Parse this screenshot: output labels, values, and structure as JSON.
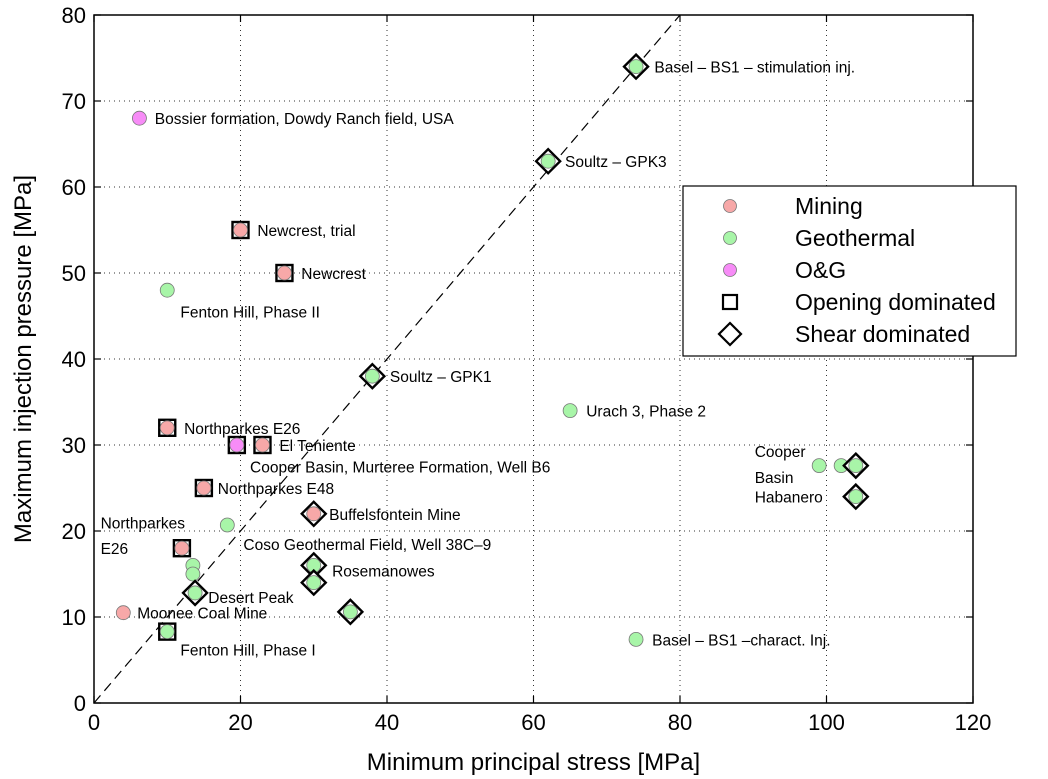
{
  "chart_data": {
    "type": "scatter",
    "xlabel": "Minimum principal stress [MPa]",
    "ylabel": "Maximum injection pressure [MPa]",
    "xlim": [
      0,
      120
    ],
    "ylim": [
      0,
      80
    ],
    "xticks": [
      0,
      20,
      40,
      60,
      80,
      100,
      120
    ],
    "yticks": [
      0,
      10,
      20,
      30,
      40,
      50,
      60,
      70,
      80
    ],
    "grid": true,
    "reference_line": "1:1 dashed",
    "colors": {
      "Mining": "#f7a8a8",
      "Geothermal": "#a8f5a8",
      "O&G": "#f78cf7"
    },
    "legend": {
      "position": "right",
      "entries": [
        {
          "label": "Mining",
          "symbol": "circle",
          "color": "#f7a8a8"
        },
        {
          "label": "Geothermal",
          "symbol": "circle",
          "color": "#a8f5a8"
        },
        {
          "label": "O&G",
          "symbol": "circle",
          "color": "#f78cf7"
        },
        {
          "label": "Opening dominated",
          "symbol": "square"
        },
        {
          "label": "Shear dominated",
          "symbol": "diamond"
        }
      ]
    },
    "points": [
      {
        "x": 74,
        "y": 74,
        "category": "Geothermal",
        "mechanism": "shear"
      },
      {
        "x": 6.2,
        "y": 68,
        "category": "O&G",
        "mechanism": "none"
      },
      {
        "x": 62,
        "y": 63,
        "category": "Geothermal",
        "mechanism": "shear"
      },
      {
        "x": 20,
        "y": 55,
        "category": "Mining",
        "mechanism": "opening"
      },
      {
        "x": 26,
        "y": 50,
        "category": "Mining",
        "mechanism": "opening"
      },
      {
        "x": 10,
        "y": 48,
        "category": "Geothermal",
        "mechanism": "none"
      },
      {
        "x": 38,
        "y": 38,
        "category": "Geothermal",
        "mechanism": "shear"
      },
      {
        "x": 65,
        "y": 34,
        "category": "Geothermal",
        "mechanism": "none"
      },
      {
        "x": 10,
        "y": 32,
        "category": "Mining",
        "mechanism": "opening"
      },
      {
        "x": 19.5,
        "y": 30,
        "category": "O&G",
        "mechanism": "opening"
      },
      {
        "x": 23,
        "y": 30,
        "category": "Mining",
        "mechanism": "opening"
      },
      {
        "x": 99,
        "y": 27.6,
        "category": "Geothermal",
        "mechanism": "none"
      },
      {
        "x": 102,
        "y": 27.6,
        "category": "Geothermal",
        "mechanism": "none"
      },
      {
        "x": 104,
        "y": 27.6,
        "category": "Geothermal",
        "mechanism": "shear"
      },
      {
        "x": 15,
        "y": 25,
        "category": "Mining",
        "mechanism": "opening"
      },
      {
        "x": 104,
        "y": 24,
        "category": "Geothermal",
        "mechanism": "shear"
      },
      {
        "x": 30,
        "y": 22,
        "category": "Mining",
        "mechanism": "shear"
      },
      {
        "x": 18.2,
        "y": 20.7,
        "category": "Geothermal",
        "mechanism": "none"
      },
      {
        "x": 12,
        "y": 18,
        "category": "Mining",
        "mechanism": "opening"
      },
      {
        "x": 30,
        "y": 16,
        "category": "Geothermal",
        "mechanism": "shear"
      },
      {
        "x": 13.5,
        "y": 16,
        "category": "Geothermal",
        "mechanism": "none"
      },
      {
        "x": 13.5,
        "y": 15,
        "category": "Geothermal",
        "mechanism": "none"
      },
      {
        "x": 30,
        "y": 14,
        "category": "Geothermal",
        "mechanism": "shear"
      },
      {
        "x": 13.8,
        "y": 12.8,
        "category": "Geothermal",
        "mechanism": "shear"
      },
      {
        "x": 35,
        "y": 10.6,
        "category": "Geothermal",
        "mechanism": "shear"
      },
      {
        "x": 4,
        "y": 10.5,
        "category": "Mining",
        "mechanism": "none"
      },
      {
        "x": 10,
        "y": 8.3,
        "category": "Geothermal",
        "mechanism": "opening"
      },
      {
        "x": 74,
        "y": 7.4,
        "category": "Geothermal",
        "mechanism": "none"
      }
    ],
    "annotations": [
      {
        "text": "Basel – BS1 – stimulation inj.",
        "x": 76.5,
        "y": 74,
        "anchor": "start"
      },
      {
        "text": "Bossier formation, Dowdy Ranch field, USA",
        "x": 8.3,
        "y": 68,
        "anchor": "start"
      },
      {
        "text": "Soultz – GPK3",
        "x": 64.3,
        "y": 63,
        "anchor": "start"
      },
      {
        "text": "Newcrest, trial",
        "x": 22.3,
        "y": 55,
        "anchor": "start"
      },
      {
        "text": "Newcrest",
        "x": 28.3,
        "y": 50,
        "anchor": "start"
      },
      {
        "text": "Fenton Hill, Phase II",
        "x": 11.8,
        "y": 45.5,
        "anchor": "start"
      },
      {
        "text": "Soultz – GPK1",
        "x": 40.4,
        "y": 38,
        "anchor": "start"
      },
      {
        "text": "Urach 3, Phase 2",
        "x": 67.2,
        "y": 34,
        "anchor": "start"
      },
      {
        "text": "Northparkes E26",
        "x": 12.3,
        "y": 32,
        "anchor": "start"
      },
      {
        "text": "El Teniente",
        "x": 25.3,
        "y": 30,
        "anchor": "start"
      },
      {
        "text": "Cooper Basin, Murteree Formation, Well B6",
        "x": 21.3,
        "y": 27.5,
        "anchor": "start"
      },
      {
        "text": "Northparkes E48",
        "x": 16.9,
        "y": 25,
        "anchor": "start"
      },
      {
        "text": "Buffelsfontein Mine",
        "x": 32.1,
        "y": 22,
        "anchor": "start"
      },
      {
        "text": "Northparkes",
        "x": 0.9,
        "y": 21,
        "anchor": "start"
      },
      {
        "text": "E26",
        "x": 0.9,
        "y": 18,
        "anchor": "start"
      },
      {
        "text": "Coso Geothermal Field, Well 38C–9",
        "x": 20.4,
        "y": 18.5,
        "anchor": "start"
      },
      {
        "text": "Rosemanowes",
        "x": 32.5,
        "y": 15.4,
        "anchor": "start"
      },
      {
        "text": "Desert Peak",
        "x": 15.6,
        "y": 12.3,
        "anchor": "start"
      },
      {
        "text": "Moonee Coal Mine",
        "x": 5.9,
        "y": 10.5,
        "anchor": "start"
      },
      {
        "text": "Fenton Hill, Phase I",
        "x": 11.8,
        "y": 6.2,
        "anchor": "start"
      },
      {
        "text": "Basel – BS1 –charact. Inj.",
        "x": 76.2,
        "y": 7.4,
        "anchor": "start"
      },
      {
        "text": "Cooper",
        "x": 90.2,
        "y": 29.3,
        "anchor": "start"
      },
      {
        "text": "Basin",
        "x": 90.2,
        "y": 26.3,
        "anchor": "start"
      },
      {
        "text": "Habanero",
        "x": 90.2,
        "y": 24,
        "anchor": "start"
      }
    ]
  }
}
